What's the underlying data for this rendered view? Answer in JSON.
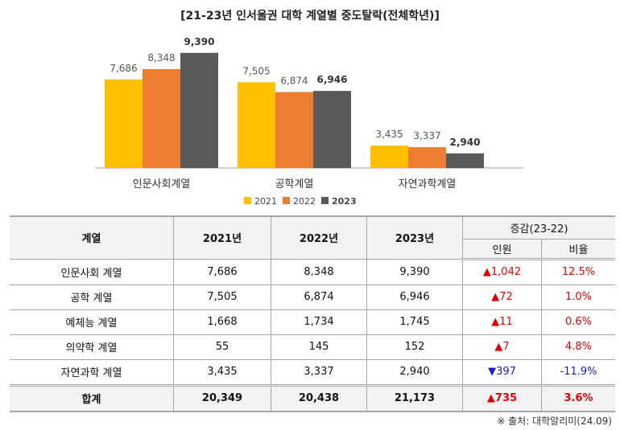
{
  "chart_data": {
    "type": "bar",
    "title": "[21-23년 인서울권 대학 계열별 중도탈락(전체학년)]",
    "categories": [
      "인문사회계열",
      "공학계열",
      "자연과학계열"
    ],
    "series": [
      {
        "name": "2021",
        "values": [
          7686,
          7505,
          3435
        ],
        "color": "#FFC000"
      },
      {
        "name": "2022",
        "values": [
          8348,
          6874,
          3337
        ],
        "color": "#ED7D31"
      },
      {
        "name": "2023",
        "values": [
          9390,
          6946,
          2940
        ],
        "color": "#595959"
      }
    ],
    "data_labels": [
      [
        "7,686",
        "7,505",
        "3,435"
      ],
      [
        "8,348",
        "6,874",
        "3,337"
      ],
      [
        "9,390",
        "6,946",
        "2,940"
      ]
    ],
    "ylim": [
      2000,
      10500
    ],
    "grid": false,
    "legend": "bottom"
  },
  "table": {
    "headers": {
      "category": "계열",
      "y2021": "2021년",
      "y2022": "2022년",
      "y2023": "2023년",
      "change": "증감(23-22)",
      "count": "인원",
      "ratio": "비율"
    },
    "rows": [
      {
        "name": "인문사회 계열",
        "y2021": "7,686",
        "y2022": "8,348",
        "y2023": "9,390",
        "count": "▲1,042",
        "ratio": "12.5%",
        "dir": "up"
      },
      {
        "name": "공학 계열",
        "y2021": "7,505",
        "y2022": "6,874",
        "y2023": "6,946",
        "count": "▲72",
        "ratio": "1.0%",
        "dir": "up"
      },
      {
        "name": "예체능 계열",
        "y2021": "1,668",
        "y2022": "1,734",
        "y2023": "1,745",
        "count": "▲11",
        "ratio": "0.6%",
        "dir": "up"
      },
      {
        "name": "의약학 계열",
        "y2021": "55",
        "y2022": "145",
        "y2023": "152",
        "count": "▲7",
        "ratio": "4.8%",
        "dir": "up"
      },
      {
        "name": "자연과학 계열",
        "y2021": "3,435",
        "y2022": "3,337",
        "y2023": "2,940",
        "count": "▼397",
        "ratio": "-11.9%",
        "dir": "down"
      }
    ],
    "total": {
      "name": "합계",
      "y2021": "20,349",
      "y2022": "20,438",
      "y2023": "21,173",
      "count": "▲735",
      "ratio": "3.6%",
      "dir": "up"
    }
  },
  "source": "※ 출처: 대학알리미(24.09)"
}
